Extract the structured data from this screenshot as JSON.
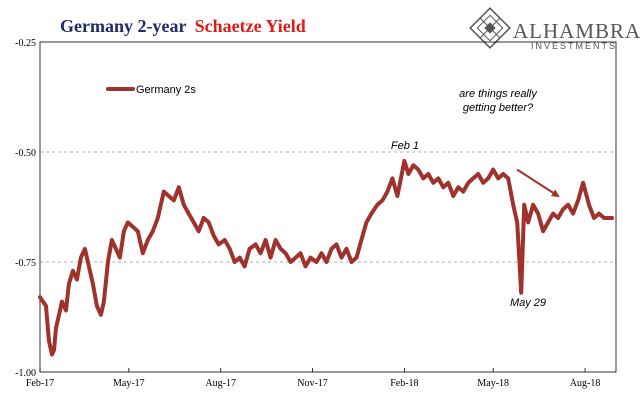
{
  "title": {
    "part1": "Germany 2-year",
    "part2": "Schaetze Yield",
    "part1_color": "#1f2a6b",
    "part2_color": "#e01b1b"
  },
  "logo": {
    "name": "ALHAMBRA",
    "tagline": "INVESTMENTS",
    "color": "#555555"
  },
  "annotations": {
    "question": [
      "are things really",
      "getting better?"
    ],
    "feb1": "Feb 1",
    "may29": "May 29"
  },
  "chart_data": {
    "type": "line",
    "series": [
      {
        "name": "Germany 2s",
        "color": "#a0322c",
        "x": [
          "2017-02-01",
          "2017-02-04",
          "2017-02-07",
          "2017-02-10",
          "2017-02-13",
          "2017-02-15",
          "2017-02-17",
          "2017-02-20",
          "2017-02-23",
          "2017-02-27",
          "2017-03-02",
          "2017-03-06",
          "2017-03-10",
          "2017-03-14",
          "2017-03-18",
          "2017-03-22",
          "2017-03-26",
          "2017-03-30",
          "2017-04-03",
          "2017-04-06",
          "2017-04-10",
          "2017-04-14",
          "2017-04-18",
          "2017-04-22",
          "2017-04-26",
          "2017-04-30",
          "2017-05-05",
          "2017-05-10",
          "2017-05-15",
          "2017-05-20",
          "2017-05-25",
          "2017-05-30",
          "2017-06-05",
          "2017-06-10",
          "2017-06-15",
          "2017-06-20",
          "2017-06-25",
          "2017-06-30",
          "2017-07-05",
          "2017-07-10",
          "2017-07-15",
          "2017-07-20",
          "2017-07-25",
          "2017-07-30",
          "2017-08-05",
          "2017-08-10",
          "2017-08-15",
          "2017-08-20",
          "2017-08-25",
          "2017-08-30",
          "2017-09-05",
          "2017-09-10",
          "2017-09-15",
          "2017-09-20",
          "2017-09-25",
          "2017-09-30",
          "2017-10-05",
          "2017-10-10",
          "2017-10-15",
          "2017-10-20",
          "2017-10-25",
          "2017-10-30",
          "2017-11-05",
          "2017-11-10",
          "2017-11-15",
          "2017-11-20",
          "2017-11-25",
          "2017-11-30",
          "2017-12-05",
          "2017-12-10",
          "2017-12-15",
          "2017-12-20",
          "2017-12-25",
          "2017-12-30",
          "2018-01-05",
          "2018-01-10",
          "2018-01-15",
          "2018-01-20",
          "2018-01-25",
          "2018-02-01",
          "2018-02-05",
          "2018-02-10",
          "2018-02-15",
          "2018-02-20",
          "2018-02-25",
          "2018-03-02",
          "2018-03-07",
          "2018-03-12",
          "2018-03-17",
          "2018-03-22",
          "2018-03-27",
          "2018-04-01",
          "2018-04-06",
          "2018-04-11",
          "2018-04-16",
          "2018-04-21",
          "2018-04-26",
          "2018-05-01",
          "2018-05-06",
          "2018-05-11",
          "2018-05-16",
          "2018-05-21",
          "2018-05-25",
          "2018-05-29",
          "2018-06-01",
          "2018-06-05",
          "2018-06-10",
          "2018-06-15",
          "2018-06-20",
          "2018-06-25",
          "2018-06-30",
          "2018-07-05",
          "2018-07-10",
          "2018-07-15",
          "2018-07-20",
          "2018-07-25",
          "2018-07-30",
          "2018-08-05",
          "2018-08-10",
          "2018-08-15",
          "2018-08-20",
          "2018-08-28"
        ],
        "y": [
          -0.83,
          -0.84,
          -0.85,
          -0.93,
          -0.96,
          -0.95,
          -0.9,
          -0.87,
          -0.84,
          -0.86,
          -0.8,
          -0.77,
          -0.79,
          -0.74,
          -0.72,
          -0.76,
          -0.8,
          -0.85,
          -0.87,
          -0.84,
          -0.75,
          -0.7,
          -0.72,
          -0.74,
          -0.68,
          -0.66,
          -0.67,
          -0.68,
          -0.73,
          -0.7,
          -0.68,
          -0.65,
          -0.59,
          -0.6,
          -0.61,
          -0.58,
          -0.62,
          -0.64,
          -0.66,
          -0.68,
          -0.65,
          -0.66,
          -0.69,
          -0.71,
          -0.7,
          -0.72,
          -0.75,
          -0.74,
          -0.76,
          -0.72,
          -0.71,
          -0.73,
          -0.7,
          -0.74,
          -0.7,
          -0.72,
          -0.73,
          -0.75,
          -0.74,
          -0.73,
          -0.76,
          -0.74,
          -0.75,
          -0.73,
          -0.75,
          -0.72,
          -0.71,
          -0.74,
          -0.72,
          -0.75,
          -0.74,
          -0.7,
          -0.66,
          -0.64,
          -0.62,
          -0.61,
          -0.59,
          -0.56,
          -0.6,
          -0.52,
          -0.55,
          -0.53,
          -0.54,
          -0.56,
          -0.55,
          -0.57,
          -0.56,
          -0.58,
          -0.57,
          -0.6,
          -0.58,
          -0.59,
          -0.57,
          -0.56,
          -0.55,
          -0.57,
          -0.56,
          -0.54,
          -0.56,
          -0.55,
          -0.56,
          -0.62,
          -0.66,
          -0.82,
          -0.62,
          -0.66,
          -0.62,
          -0.64,
          -0.68,
          -0.66,
          -0.64,
          -0.65,
          -0.63,
          -0.62,
          -0.64,
          -0.61,
          -0.57,
          -0.62,
          -0.65,
          -0.64,
          -0.65,
          -0.65
        ]
      }
    ],
    "ylim": [
      -1.0,
      -0.25
    ],
    "yticks": [
      -0.25,
      -0.5,
      -0.75,
      -1.0
    ],
    "ytick_labels": [
      "-0.25",
      "-0.50",
      "-0.75",
      "-1.00"
    ],
    "xlim": [
      "2017-02-01",
      "2018-09-01"
    ],
    "xticks": [
      "2017-02-01",
      "2017-05-01",
      "2017-08-01",
      "2017-11-01",
      "2018-02-01",
      "2018-05-01",
      "2018-08-01"
    ],
    "xtick_labels": [
      "Feb-17",
      "May-17",
      "Aug-17",
      "Nov-17",
      "Feb-18",
      "May-18",
      "Aug-18"
    ],
    "grid": "horizontal dashed",
    "legend_placement": "top-left",
    "arrow_annotation": {
      "from": {
        "x": "2018-05-25",
        "y": -0.54
      },
      "to": {
        "x": "2018-07-05",
        "y": -0.6
      }
    }
  }
}
